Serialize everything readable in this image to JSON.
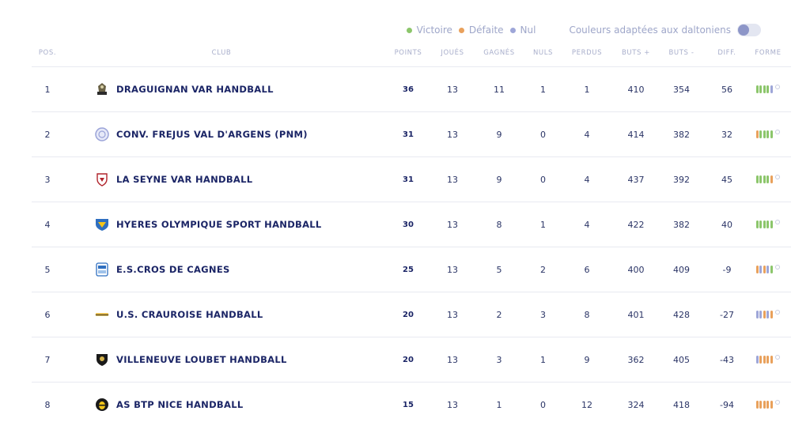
{
  "legend": {
    "victoire": "Victoire",
    "defaite": "Défaite",
    "nul": "Nul",
    "colorblind_label": "Couleurs adaptées aux daltoniens",
    "colors": {
      "V": "#8cc66b",
      "D": "#e9a15c",
      "N": "#9ea6d8"
    }
  },
  "headers": {
    "pos": "POS.",
    "club": "CLUB",
    "points": "POINTS",
    "joues": "JOUÉS",
    "gagnes": "GAGNÉS",
    "nuls": "NULS",
    "perdus": "PERDUS",
    "buts_plus": "BUTS +",
    "buts_moins": "BUTS -",
    "diff": "DIFF.",
    "forme": "FORME"
  },
  "rows": [
    {
      "pos": "1",
      "club": "DRAGUIGNAN VAR HANDBALL",
      "crest": "knight-crest-icon",
      "points": "36",
      "joues": "13",
      "gagnes": "11",
      "nuls": "1",
      "perdus": "1",
      "buts_plus": "410",
      "buts_moins": "354",
      "diff": "56",
      "forme": [
        "V",
        "V",
        "V",
        "V",
        "N"
      ]
    },
    {
      "pos": "2",
      "club": "CONV. FREJUS VAL D'ARGENS (PNM)",
      "crest": "round-badge-icon",
      "points": "31",
      "joues": "13",
      "gagnes": "9",
      "nuls": "0",
      "perdus": "4",
      "buts_plus": "414",
      "buts_moins": "382",
      "diff": "32",
      "forme": [
        "D",
        "V",
        "V",
        "V",
        "V"
      ]
    },
    {
      "pos": "3",
      "club": "LA SEYNE VAR HANDBALL",
      "crest": "shield-icon",
      "points": "31",
      "joues": "13",
      "gagnes": "9",
      "nuls": "0",
      "perdus": "4",
      "buts_plus": "437",
      "buts_moins": "392",
      "diff": "45",
      "forme": [
        "V",
        "V",
        "V",
        "V",
        "D"
      ]
    },
    {
      "pos": "4",
      "club": "HYERES OLYMPIQUE SPORT HANDBALL",
      "crest": "blue-shield-icon",
      "points": "30",
      "joues": "13",
      "gagnes": "8",
      "nuls": "1",
      "perdus": "4",
      "buts_plus": "422",
      "buts_moins": "382",
      "diff": "40",
      "forme": [
        "V",
        "V",
        "V",
        "V",
        "V"
      ]
    },
    {
      "pos": "5",
      "club": "E.S.CROS DE CAGNES",
      "crest": "cros-crest-icon",
      "points": "25",
      "joues": "13",
      "gagnes": "5",
      "nuls": "2",
      "perdus": "6",
      "buts_plus": "400",
      "buts_moins": "409",
      "diff": "-9",
      "forme": [
        "D",
        "N",
        "D",
        "N",
        "V"
      ]
    },
    {
      "pos": "6",
      "club": "U.S. CRAUROISE HANDBALL",
      "crest": "wide-logo-icon",
      "points": "20",
      "joues": "13",
      "gagnes": "2",
      "nuls": "3",
      "perdus": "8",
      "buts_plus": "401",
      "buts_moins": "428",
      "diff": "-27",
      "forme": [
        "N",
        "N",
        "D",
        "N",
        "D"
      ]
    },
    {
      "pos": "7",
      "club": "VILLENEUVE LOUBET HANDBALL",
      "crest": "dark-shield-icon",
      "points": "20",
      "joues": "13",
      "gagnes": "3",
      "nuls": "1",
      "perdus": "9",
      "buts_plus": "362",
      "buts_moins": "405",
      "diff": "-43",
      "forme": [
        "N",
        "D",
        "D",
        "D",
        "D"
      ]
    },
    {
      "pos": "8",
      "club": "AS BTP NICE HANDBALL",
      "crest": "bee-crest-icon",
      "points": "15",
      "joues": "13",
      "gagnes": "1",
      "nuls": "0",
      "perdus": "12",
      "buts_plus": "324",
      "buts_moins": "418",
      "diff": "-94",
      "forme": [
        "D",
        "D",
        "D",
        "D",
        "D"
      ]
    }
  ]
}
